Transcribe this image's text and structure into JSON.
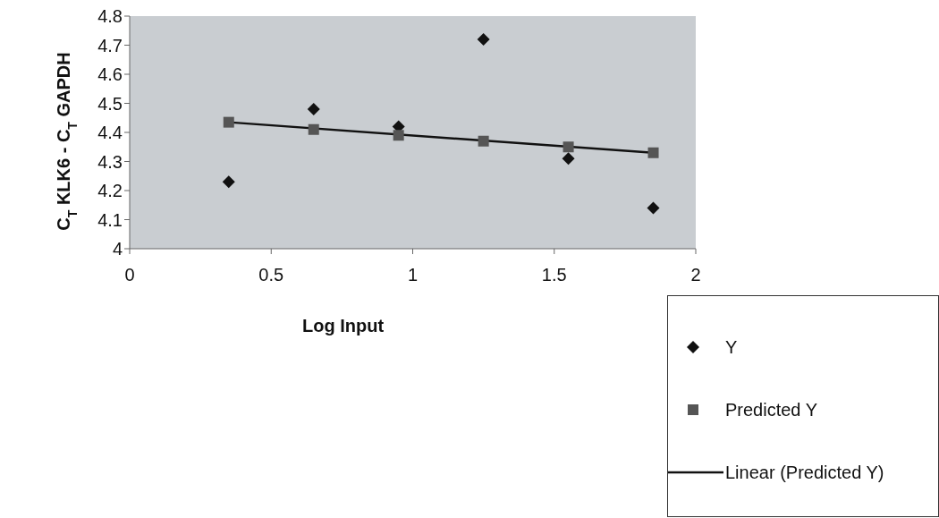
{
  "chart_data": {
    "type": "scatter",
    "xlabel": "Log Input",
    "ylabel": "C$_{T}$ KLK6 - C$_{T}$ GAPDH",
    "x": [
      0.35,
      0.65,
      0.95,
      1.25,
      1.55,
      1.85
    ],
    "series": [
      {
        "name": "Y",
        "marker": "diamond",
        "color": "#111111",
        "values": [
          4.23,
          4.48,
          4.42,
          4.72,
          4.31,
          4.14
        ]
      },
      {
        "name": "Predicted Y",
        "marker": "square",
        "color": "#555555",
        "values": [
          4.435,
          4.41,
          4.39,
          4.37,
          4.35,
          4.33
        ]
      },
      {
        "name": "Linear (Predicted Y)",
        "type": "line",
        "marker": "none",
        "color": "#111111",
        "x": [
          0.35,
          1.85
        ],
        "values": [
          4.435,
          4.33
        ]
      }
    ],
    "xlim": [
      0,
      2
    ],
    "xticks": [
      0,
      0.5,
      1,
      1.5,
      2
    ],
    "ylim": [
      4,
      4.8
    ],
    "yticks": [
      4,
      4.1,
      4.2,
      4.3,
      4.4,
      4.5,
      4.6,
      4.7,
      4.8
    ],
    "grid": false,
    "legend": "bottom right"
  }
}
